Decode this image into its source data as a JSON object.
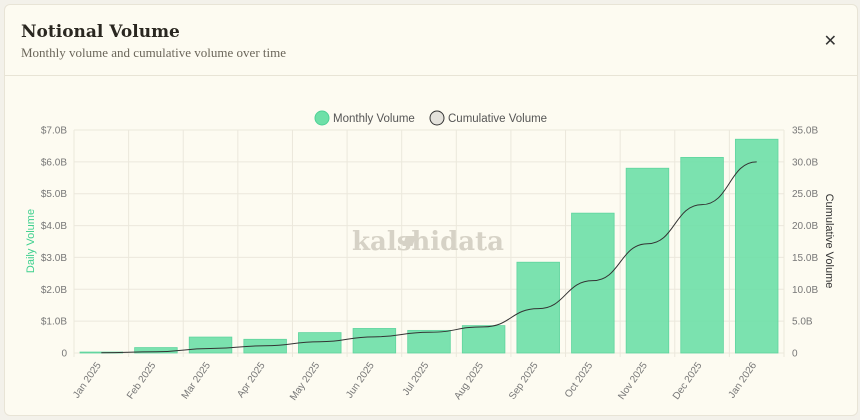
{
  "header": {
    "title": "Notional Volume",
    "subtitle": "Monthly volume and cumulative volume over time",
    "close_icon": "close-icon"
  },
  "watermark": "kalshidata",
  "colors": {
    "bar": "#6ee0a8",
    "line": "#333333",
    "left_axis_label": "#3fd08f"
  },
  "chart_data": {
    "type": "bar",
    "categories": [
      "Jan 2025",
      "Feb 2025",
      "Mar 2025",
      "Apr 2025",
      "May 2025",
      "Jun 2025",
      "Jul 2025",
      "Aug 2025",
      "Sep 2025",
      "Oct 2025",
      "Nov 2025",
      "Dec 2025",
      "Jan 2026"
    ],
    "series": [
      {
        "name": "Monthly Volume",
        "type": "bar",
        "axis": "left",
        "values": [
          0.03,
          0.17,
          0.5,
          0.43,
          0.64,
          0.77,
          0.71,
          0.86,
          2.85,
          4.39,
          5.8,
          6.14,
          6.71
        ]
      },
      {
        "name": "Cumulative Volume",
        "type": "line",
        "axis": "right",
        "values": [
          0.03,
          0.2,
          0.7,
          1.13,
          1.77,
          2.54,
          3.25,
          4.11,
          6.96,
          11.35,
          17.15,
          23.29,
          30.0
        ]
      }
    ],
    "ylabel": "Daily Volume",
    "y2label": "Cumulative Volume",
    "ylim": [
      0,
      7
    ],
    "y2lim": [
      0,
      35
    ],
    "yticks": [
      "0",
      "$1.0B",
      "$2.0B",
      "$3.0B",
      "$4.0B",
      "$5.0B",
      "$6.0B",
      "$7.0B"
    ],
    "y2ticks": [
      "0",
      "5.0B",
      "10.0B",
      "15.0B",
      "20.0B",
      "25.0B",
      "30.0B",
      "35.0B"
    ],
    "grid": true,
    "legend": "top-center"
  }
}
